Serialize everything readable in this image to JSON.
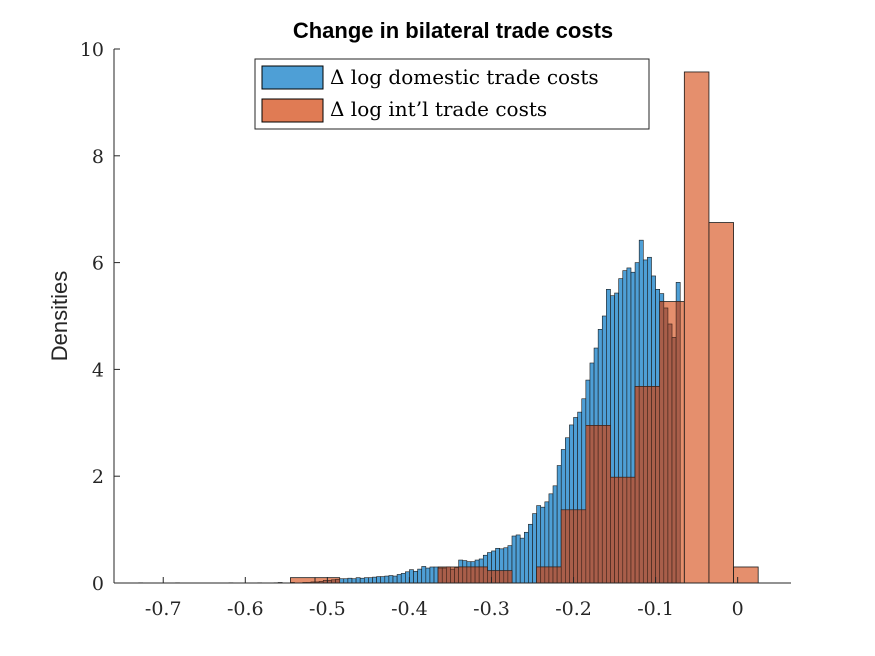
{
  "chart_data": {
    "type": "bar",
    "title": "Change in bilateral trade costs",
    "xlabel": "",
    "ylabel": "Densities",
    "xlim": [
      -0.76,
      0.065
    ],
    "ylim": [
      0,
      10
    ],
    "xticks": [
      -0.7,
      -0.6,
      -0.5,
      -0.4,
      -0.3,
      -0.2,
      -0.1,
      0
    ],
    "xtick_labels": [
      "-0.7",
      "-0.6",
      "-0.5",
      "-0.4",
      "-0.3",
      "-0.2",
      "-0.1",
      "0"
    ],
    "yticks": [
      0,
      2,
      4,
      6,
      8,
      10
    ],
    "ytick_labels": [
      "0",
      "2",
      "4",
      "6",
      "8",
      "10"
    ],
    "grid": false,
    "legend_position": "top-center",
    "series": [
      {
        "name": "Δ log domestic trade costs",
        "color": "#4e9fd6",
        "bin_start": -0.73,
        "bin_width": 0.005,
        "values": [
          0.005,
          0,
          0,
          0,
          0,
          0,
          0,
          0,
          0,
          0.005,
          0,
          0,
          0,
          0,
          0,
          0,
          0,
          0,
          0,
          0,
          0,
          0,
          0.005,
          0,
          0,
          0,
          0,
          0,
          0,
          0.005,
          0,
          0,
          0,
          0.005,
          0.01,
          0,
          0,
          0.01,
          0,
          0,
          0.01,
          0.01,
          0.02,
          0.02,
          0.03,
          0.05,
          0.05,
          0.06,
          0.07,
          0.08,
          0.08,
          0.09,
          0.08,
          0.1,
          0.09,
          0.1,
          0.1,
          0.11,
          0.12,
          0.12,
          0.13,
          0.14,
          0.13,
          0.16,
          0.18,
          0.21,
          0.25,
          0.22,
          0.26,
          0.31,
          0.28,
          0.3,
          0.3,
          0.28,
          0.28,
          0.3,
          0.26,
          0.29,
          0.43,
          0.42,
          0.4,
          0.4,
          0.43,
          0.45,
          0.52,
          0.57,
          0.6,
          0.65,
          0.64,
          0.66,
          0.7,
          0.88,
          0.9,
          0.84,
          0.95,
          1.1,
          1.3,
          1.45,
          1.42,
          1.52,
          1.67,
          1.82,
          2.2,
          2.5,
          2.72,
          2.96,
          3.1,
          3.2,
          3.45,
          3.8,
          4.12,
          4.4,
          4.75,
          5.0,
          5.5,
          5.38,
          5.43,
          5.7,
          5.85,
          5.9,
          5.82,
          6.0,
          6.42,
          6.05,
          6.1,
          5.75,
          5.5,
          5.42,
          5.15,
          4.85,
          4.6,
          5.63
        ]
      },
      {
        "name": "Δ log int’l trade costs",
        "color": "#e07b54",
        "bin_start": -0.545,
        "bin_width": 0.03,
        "values": [
          0.1,
          0.1,
          0.0,
          0.0,
          0.0,
          0.0,
          0.3,
          0.3,
          0.23,
          0.0,
          0.3,
          1.37,
          2.95,
          1.98,
          3.68,
          5.27,
          9.57,
          6.75,
          0.3
        ]
      },
      {
        "name": "",
        "color": "#a95e4a",
        "bin_start": -0.73,
        "bin_width": 0.005,
        "values": []
      }
    ]
  }
}
